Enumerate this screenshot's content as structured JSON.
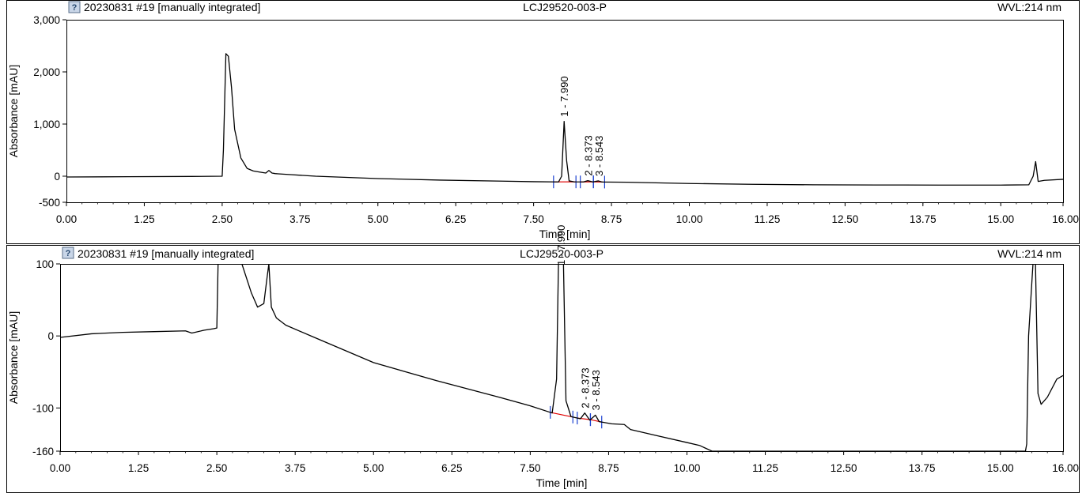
{
  "colors": {
    "trace": "#000000",
    "baseline": "#e00000",
    "marker": "#1a3fd0",
    "frame": "#000000",
    "background": "#ffffff"
  },
  "chart_data": [
    {
      "type": "line",
      "header_icon": "help-icon",
      "header_left": "20230831 #19 [manually integrated]",
      "header_center": "LCJ29520-003-P",
      "header_right": "WVL:214 nm",
      "xlabel": "Time [min]",
      "ylabel": "Absorbance [mAU]",
      "xlim": [
        0,
        16
      ],
      "ylim": [
        -500,
        3000
      ],
      "xticks": [
        "0.00",
        "1.25",
        "2.50",
        "3.75",
        "5.00",
        "6.25",
        "7.50",
        "8.75",
        "10.00",
        "11.25",
        "12.50",
        "13.75",
        "15.00",
        "16.00"
      ],
      "yticks": [
        {
          "value": -500,
          "label": "-500"
        },
        {
          "value": 0,
          "label": "0"
        },
        {
          "value": 1000,
          "label": "1,000"
        },
        {
          "value": 2000,
          "label": "2,000"
        },
        {
          "value": 3000,
          "label": "3,000"
        }
      ],
      "grid": false,
      "series": [
        {
          "x": [
            0.0,
            1.0,
            2.0,
            2.5,
            2.52,
            2.56,
            2.6,
            2.65,
            2.7,
            2.8,
            2.9,
            3.0,
            3.1,
            3.2,
            3.25,
            3.3,
            3.35,
            3.4,
            3.6,
            4.0,
            5.0,
            6.0,
            7.0,
            7.5,
            7.9,
            7.95,
            7.99,
            8.03,
            8.07,
            8.15,
            8.3,
            8.37,
            8.45,
            8.54,
            8.6,
            9.0,
            10.0,
            11.0,
            12.0,
            13.0,
            14.0,
            15.0,
            15.45,
            15.52,
            15.56,
            15.6,
            15.7,
            16.0
          ],
          "y": [
            -15,
            -10,
            -5,
            0,
            500,
            2350,
            2300,
            1700,
            900,
            350,
            150,
            100,
            80,
            60,
            110,
            60,
            50,
            45,
            30,
            0,
            -45,
            -75,
            -95,
            -105,
            -110,
            0,
            1050,
            300,
            -90,
            -108,
            -110,
            -85,
            -110,
            -90,
            -112,
            -115,
            -140,
            -155,
            -165,
            -168,
            -170,
            -170,
            -165,
            0,
            280,
            -100,
            -80,
            -60
          ]
        }
      ],
      "peaks": [
        {
          "label": "1 - 7.990",
          "x": 7.99,
          "y": 1050,
          "start": 7.82,
          "end": 8.18
        },
        {
          "label": "2 - 8.373",
          "x": 8.373,
          "y": -85,
          "start": 8.25,
          "end": 8.46
        },
        {
          "label": "3 - 8.543",
          "x": 8.543,
          "y": -90,
          "start": 8.46,
          "end": 8.64
        }
      ]
    },
    {
      "type": "line",
      "header_icon": "help-icon",
      "header_left": "20230831 #19 [manually integrated]",
      "header_center": "LCJ29520-003-P",
      "header_right": "WVL:214 nm",
      "xlabel": "Time [min]",
      "ylabel": "Absorbance [mAU]",
      "xlim": [
        0,
        16
      ],
      "ylim": [
        -160,
        100
      ],
      "xticks": [
        "0.00",
        "1.25",
        "2.50",
        "3.75",
        "5.00",
        "6.25",
        "7.50",
        "8.75",
        "10.00",
        "11.25",
        "12.50",
        "13.75",
        "15.00",
        "16.00"
      ],
      "yticks": [
        {
          "value": -160,
          "label": "-160"
        },
        {
          "value": -100,
          "label": "-100"
        },
        {
          "value": 0,
          "label": "0"
        },
        {
          "value": 100,
          "label": "100"
        }
      ],
      "grid": false,
      "series": [
        {
          "x": [
            0.0,
            0.5,
            1.0,
            1.5,
            2.0,
            2.1,
            2.15,
            2.3,
            2.45,
            2.5,
            2.52,
            2.56,
            2.9,
            3.05,
            3.15,
            3.25,
            3.3,
            3.33,
            3.37,
            3.45,
            3.6,
            4.0,
            5.0,
            6.0,
            7.0,
            7.5,
            7.85,
            7.92,
            7.95,
            7.99,
            8.03,
            8.07,
            8.15,
            8.3,
            8.37,
            8.45,
            8.54,
            8.6,
            8.8,
            9.0,
            9.1,
            9.5,
            10.0,
            10.2,
            10.4,
            10.6,
            15.2,
            15.4,
            15.42,
            15.45,
            15.52,
            15.56,
            15.6,
            15.65,
            15.75,
            15.9,
            16.0
          ],
          "y": [
            -2,
            3,
            5,
            6,
            7,
            4,
            5,
            8,
            10,
            11,
            100,
            100,
            100,
            60,
            40,
            45,
            80,
            100,
            40,
            25,
            15,
            0,
            -37,
            -62,
            -85,
            -97,
            -107,
            -60,
            100,
            100,
            100,
            -90,
            -112,
            -115,
            -107,
            -117,
            -110,
            -119,
            -122,
            -123,
            -130,
            -138,
            -148,
            -152,
            -160,
            -160,
            -160,
            -160,
            -150,
            0,
            100,
            100,
            -80,
            -95,
            -85,
            -60,
            -55
          ]
        }
      ],
      "peaks": [
        {
          "label": "1 - 7.990",
          "x": 7.99,
          "y": 100,
          "start": 7.82,
          "end": 8.18
        },
        {
          "label": "2 - 8.373",
          "x": 8.373,
          "y": -107,
          "start": 8.25,
          "end": 8.46
        },
        {
          "label": "3 - 8.543",
          "x": 8.543,
          "y": -110,
          "start": 8.46,
          "end": 8.64
        }
      ]
    }
  ]
}
